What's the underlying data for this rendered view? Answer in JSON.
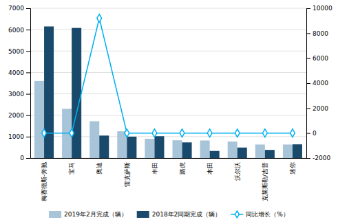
{
  "chart_data": {
    "type": "bar",
    "categories": [
      "梅赛德斯-奔驰",
      "宝马",
      "奥迪",
      "雷克萨斯",
      "丰田",
      "路虎",
      "本田",
      "沃尔沃",
      "克莱斯勒/吉普",
      "迷你"
    ],
    "series": [
      {
        "name": "2019年2月完成（辆）",
        "color": "#a8c4d8",
        "values": [
          3600,
          2300,
          1720,
          1250,
          900,
          830,
          820,
          770,
          630,
          630
        ]
      },
      {
        "name": "2018年2同期完成（辆）",
        "color": "#1a4a6b",
        "values": [
          6150,
          6080,
          1050,
          1000,
          1020,
          730,
          330,
          490,
          380,
          640
        ]
      },
      {
        "name": "同比增长（%）",
        "type": "line",
        "axis": "y2",
        "color": "#00b0f0",
        "marker": "diamond",
        "values": [
          0,
          0,
          9200,
          0,
          0,
          0,
          0,
          0,
          0,
          0
        ]
      }
    ],
    "ylim": [
      0,
      7000
    ],
    "yticks": [
      0,
      1000,
      2000,
      3000,
      4000,
      5000,
      6000,
      7000
    ],
    "y2lim": [
      -2000,
      10000
    ],
    "y2ticks": [
      -2000,
      0,
      2000,
      4000,
      6000,
      8000,
      10000
    ],
    "grid": true,
    "legend": "bottom"
  }
}
